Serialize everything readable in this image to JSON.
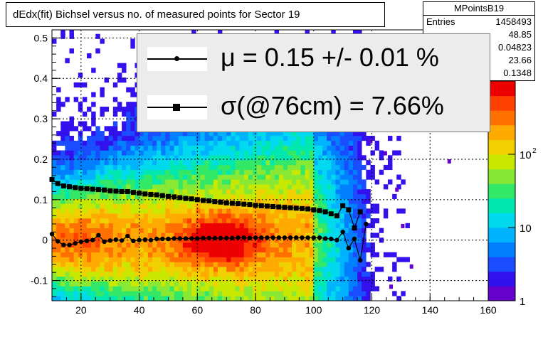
{
  "chart_data": {
    "type": "heatmap",
    "title": "dEdx(fit) Bichsel versus no. of measured points for Sector 19",
    "xlabel": "",
    "ylabel": "",
    "xlim": [
      10,
      160
    ],
    "ylim": [
      -0.15,
      0.52
    ],
    "x_ticks": [
      20,
      40,
      60,
      80,
      100,
      120,
      140,
      160
    ],
    "y_ticks": [
      -0.1,
      0,
      0.1,
      0.2,
      0.3,
      0.4,
      0.5
    ],
    "x_tick_labels": [
      "20",
      "40",
      "60",
      "80",
      "100",
      "120",
      "140",
      "160"
    ],
    "y_tick_labels": [
      "-0.1",
      "0",
      "0.1",
      "0.2",
      "0.3",
      "0.4",
      "0.5"
    ],
    "grid": true,
    "colorbar": {
      "scale": "log",
      "range": [
        1,
        1000
      ],
      "tick_labels": [
        {
          "base": "1",
          "exp": ""
        },
        {
          "base": "10",
          "exp": ""
        },
        {
          "base": "10",
          "exp": "2"
        }
      ],
      "tick_values": [
        1,
        10,
        100
      ]
    },
    "stats": {
      "name": "MPointsB19",
      "rows": [
        {
          "label": "Entries",
          "value": "1458493"
        },
        {
          "label": "",
          "value": "48.85"
        },
        {
          "label": "",
          "value": "0.04823"
        },
        {
          "label": "",
          "value": "23.66"
        },
        {
          "label": "",
          "value": "0.1348"
        }
      ]
    },
    "legend": {
      "placement": "top-center",
      "entries": [
        {
          "marker": "circle",
          "text": "μ  =  0.15 +/-  0.01 %"
        },
        {
          "marker": "square",
          "text": "σ(@76cm) =  7.66%"
        }
      ]
    },
    "series": [
      {
        "marker": "circle",
        "x": [
          10,
          12,
          14,
          16,
          18,
          20,
          22,
          24,
          26,
          28,
          30,
          32,
          34,
          36,
          38,
          40,
          42,
          44,
          46,
          48,
          50,
          52,
          54,
          56,
          58,
          60,
          62,
          64,
          66,
          68,
          70,
          72,
          74,
          76,
          78,
          80,
          82,
          84,
          86,
          88,
          90,
          92,
          94,
          96,
          98,
          100,
          102,
          104,
          106,
          108,
          110,
          112,
          114,
          116,
          118
        ],
        "y": [
          0.015,
          -0.003,
          -0.012,
          -0.012,
          -0.008,
          -0.004,
          -0.002,
          0.0,
          0.012,
          -0.004,
          -0.001,
          0.001,
          -0.001,
          0.01,
          -0.002,
          0.0,
          0.001,
          0.0,
          0.003,
          0.003,
          0.003,
          0.004,
          0.004,
          0.004,
          0.004,
          0.004,
          0.005,
          0.005,
          0.005,
          0.005,
          0.005,
          0.005,
          0.006,
          0.006,
          0.005,
          0.006,
          0.006,
          0.006,
          0.006,
          0.006,
          0.006,
          0.006,
          0.006,
          0.006,
          0.006,
          0.006,
          0.006,
          0.004,
          0.003,
          0.0,
          0.02,
          -0.02,
          0.003,
          -0.05,
          0.04
        ]
      },
      {
        "marker": "square",
        "x": [
          10,
          12,
          14,
          16,
          18,
          20,
          22,
          24,
          26,
          28,
          30,
          32,
          34,
          36,
          38,
          40,
          42,
          44,
          46,
          48,
          50,
          52,
          54,
          56,
          58,
          60,
          62,
          64,
          66,
          68,
          70,
          72,
          74,
          76,
          78,
          80,
          82,
          84,
          86,
          88,
          90,
          92,
          94,
          96,
          98,
          100,
          102,
          104,
          106,
          108,
          110,
          112,
          114,
          116
        ],
        "y": [
          0.15,
          0.14,
          0.134,
          0.132,
          0.13,
          0.128,
          0.127,
          0.126,
          0.125,
          0.124,
          0.122,
          0.121,
          0.12,
          0.12,
          0.118,
          0.116,
          0.114,
          0.113,
          0.112,
          0.11,
          0.108,
          0.107,
          0.105,
          0.103,
          0.102,
          0.1,
          0.098,
          0.097,
          0.095,
          0.094,
          0.092,
          0.091,
          0.09,
          0.089,
          0.088,
          0.086,
          0.085,
          0.084,
          0.083,
          0.082,
          0.081,
          0.08,
          0.079,
          0.078,
          0.077,
          0.075,
          0.073,
          0.07,
          0.065,
          0.06,
          0.085,
          0.075,
          0.03,
          0.07
        ]
      }
    ]
  }
}
